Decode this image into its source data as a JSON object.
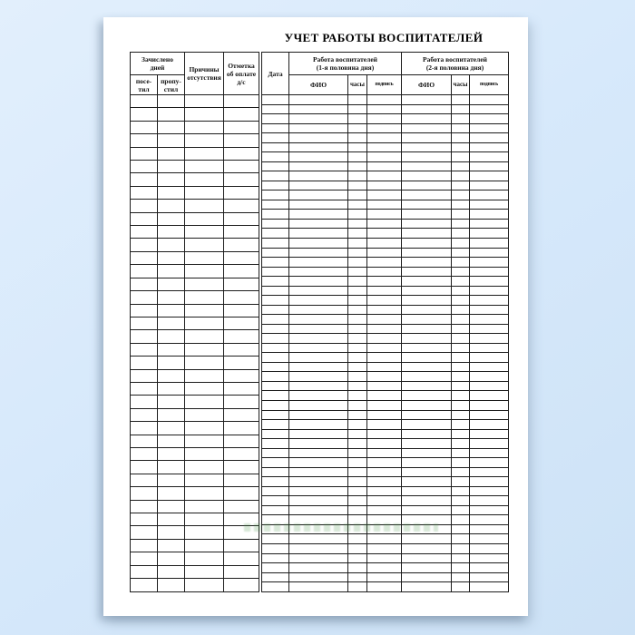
{
  "page": {
    "title": "УЧЕТ РАБОТЫ ВОСПИТАТЕЛЕЙ"
  },
  "left_table": {
    "enrolled_days_label": "Зачислено\nдней",
    "sub_columns": [
      "посе-\nтил",
      "пропу-\nстил"
    ],
    "reasons_label": "Причины\nотсутствия",
    "payment_label": "Отметка\nоб оплате\nд/с",
    "rows_count": 38,
    "columns_count": 4,
    "cell_values": "all body cells are blank"
  },
  "right_table": {
    "date_label": "Дата",
    "groups": [
      {
        "label": "Работа воспитателей\n(1-я половина дня)",
        "columns": [
          "ФИО",
          "часы",
          "подпись"
        ]
      },
      {
        "label": "Работа воспитателей\n(2-я половина дня)",
        "columns": [
          "ФИО",
          "часы",
          "подпись"
        ]
      }
    ],
    "rows_count": 52,
    "columns_count": 7,
    "cell_values": "all body cells are blank"
  },
  "colors": {
    "background_blue": "#d7e9fb",
    "sheet_white": "#ffffff",
    "grid_border": "#1c1c1c",
    "title_text": "#000000",
    "watermark_green": "#4a964a"
  }
}
